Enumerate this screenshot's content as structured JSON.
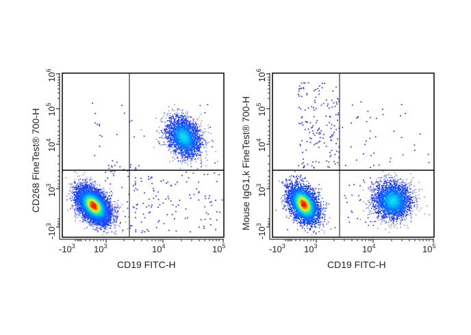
{
  "figure": {
    "panels": [
      {
        "ylabel": "CD268 FineTest® 700-H",
        "xlabel": "CD19 FITC-H"
      },
      {
        "ylabel": "Mouse IgG1,k FineTest® 700-H",
        "xlabel": "CD19 FITC-H"
      }
    ],
    "x_ticks": [
      {
        "base": "-10",
        "exp": "3"
      },
      {
        "base": "10",
        "exp": "3"
      },
      {
        "base": "10",
        "exp": "4"
      },
      {
        "base": "10",
        "exp": "5"
      }
    ],
    "y_ticks": [
      {
        "base": "-10",
        "exp": "3"
      },
      {
        "base": "10",
        "exp": "3"
      },
      {
        "base": "10",
        "exp": "4"
      },
      {
        "base": "10",
        "exp": "5"
      },
      {
        "base": "10",
        "exp": "6"
      }
    ]
  },
  "colors": {
    "low_density": "#0000ff",
    "mid_density": "#00c8ff",
    "mid_high_density": "#00ff00",
    "high_density": "#ffff00",
    "peak_density": "#ff0000",
    "gate_line": "#000000",
    "axis": "#000000"
  },
  "chart_data": [
    {
      "type": "scatter",
      "subtype": "flow-cytometry pseudocolor density plot",
      "title": "",
      "xlabel": "CD19 FITC-H",
      "ylabel": "CD268 FineTest® 700-H",
      "x_scale": "biexponential",
      "y_scale": "biexponential",
      "x_tick_labels": [
        "-10^3",
        "10^3",
        "10^4",
        "10^5"
      ],
      "y_tick_labels": [
        "-10^3",
        "10^3",
        "10^4",
        "10^5",
        "10^6"
      ],
      "xlim": [
        -1000,
        100000
      ],
      "ylim": [
        -1000,
        1000000
      ],
      "quadrant_gate": {
        "x": 2600,
        "y": 2200
      },
      "populations": [
        {
          "name": "CD19- CD268- (lower-left)",
          "center_x": 600,
          "center_y": 300,
          "density": "high (red peak)"
        },
        {
          "name": "CD19+ CD268+ (upper-right)",
          "center_x": 28000,
          "center_y": 18000,
          "density": "medium (blue/cyan)"
        }
      ],
      "grid": false,
      "legend": "none"
    },
    {
      "type": "scatter",
      "subtype": "flow-cytometry pseudocolor density plot",
      "title": "",
      "xlabel": "CD19 FITC-H",
      "ylabel": "Mouse IgG1,k FineTest® 700-H",
      "x_scale": "biexponential",
      "y_scale": "biexponential",
      "x_tick_labels": [
        "-10^3",
        "10^3",
        "10^4",
        "10^5"
      ],
      "y_tick_labels": [
        "-10^3",
        "10^3",
        "10^4",
        "10^5",
        "10^6"
      ],
      "xlim": [
        -1000,
        100000
      ],
      "ylim": [
        -1000,
        1000000
      ],
      "quadrant_gate": {
        "x": 2600,
        "y": 2200
      },
      "populations": [
        {
          "name": "CD19- isotype- (lower-left)",
          "center_x": 600,
          "center_y": 300,
          "density": "high (red peak)"
        },
        {
          "name": "CD19+ isotype- (lower-right)",
          "center_x": 25000,
          "center_y": 250,
          "density": "medium (blue/cyan)"
        }
      ],
      "grid": false,
      "legend": "none"
    }
  ]
}
